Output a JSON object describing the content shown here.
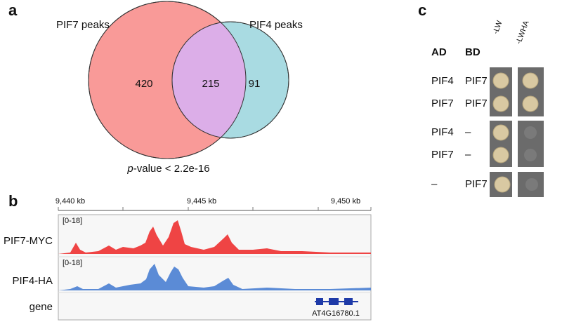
{
  "panel_a": {
    "label": "a",
    "sets": [
      "PIF7 peaks",
      "PIF4 peaks"
    ],
    "counts": {
      "only_pif7": 420,
      "both": 215,
      "only_pif4": 91
    },
    "p_value": {
      "italic": "p",
      "rest": "-value < 2.2e-16"
    }
  },
  "panel_b": {
    "label": "b",
    "axis_ticks": [
      "9,440 kb",
      "9,445 kb",
      "9,450 kb"
    ],
    "tracks": [
      {
        "name": "PIF7-MYC",
        "range": "[0-18]"
      },
      {
        "name": "PIF4-HA",
        "range": "[0-18]"
      },
      {
        "name": "gene",
        "feature": "AT4G16780.1"
      }
    ]
  },
  "panel_c": {
    "label": "c",
    "headers": [
      "AD",
      "BD",
      "-LW",
      "-LWHA"
    ],
    "rows": [
      [
        "PIF4",
        "PIF7"
      ],
      [
        "PIF7",
        "PIF7"
      ],
      [
        "PIF4",
        "–"
      ],
      [
        "PIF7",
        "–"
      ],
      [
        "–",
        "PIF7"
      ]
    ]
  }
}
